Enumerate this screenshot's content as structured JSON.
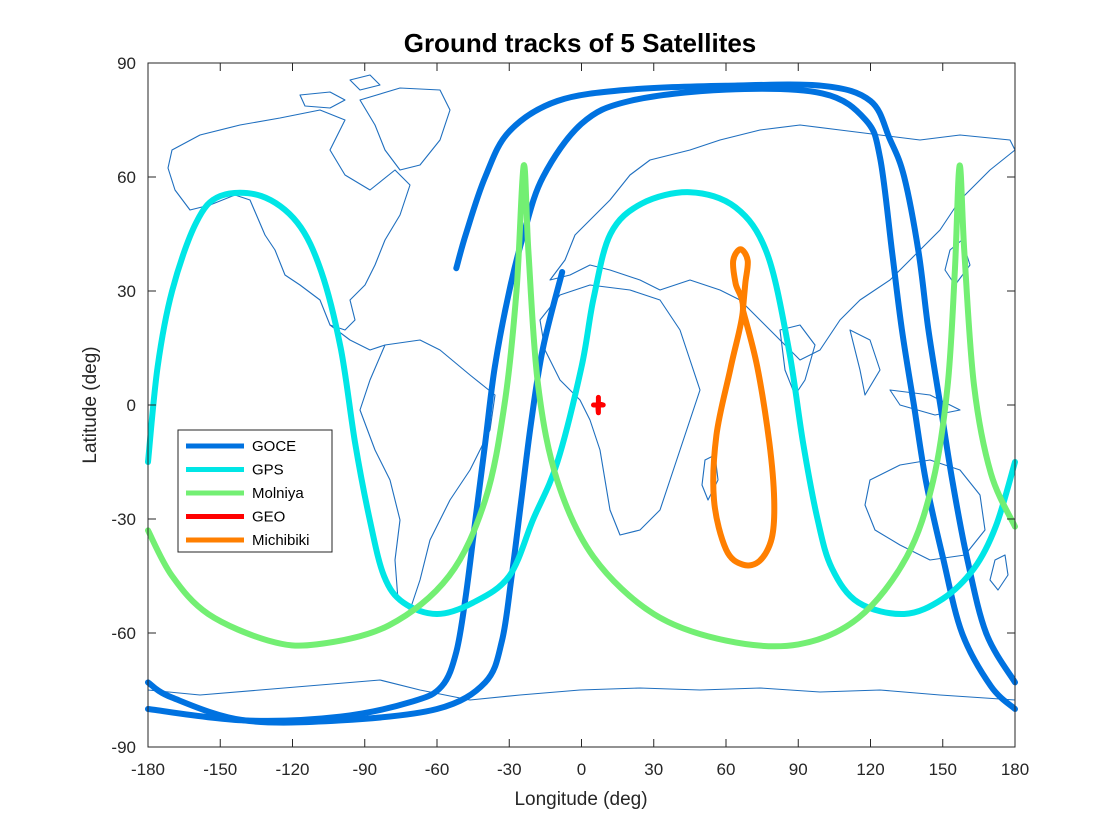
{
  "chart_data": {
    "type": "line",
    "title": "Ground tracks of 5 Satellites",
    "xlabel": "Longitude (deg)",
    "ylabel": "Latitude (deg)",
    "xlim": [
      -180,
      180
    ],
    "ylim": [
      -90,
      90
    ],
    "xticks": [
      -180,
      -150,
      -120,
      -90,
      -60,
      -30,
      0,
      30,
      60,
      90,
      120,
      150,
      180
    ],
    "yticks": [
      90,
      60,
      30,
      0,
      -30,
      -60,
      -90
    ],
    "grid": false,
    "legend_position": "left-center",
    "background": "world coastline map",
    "coastline_color": "#1f6fbf",
    "series": [
      {
        "name": "GOCE",
        "color": "#0072e0",
        "segments": [
          [
            [
              -52,
              36
            ],
            [
              -48,
              45
            ],
            [
              -40,
              60
            ],
            [
              -30,
              72
            ],
            [
              -10,
              80
            ],
            [
              20,
              83
            ],
            [
              60,
              84
            ],
            [
              100,
              84
            ],
            [
              120,
              80
            ],
            [
              128,
              70
            ],
            [
              134,
              60
            ],
            [
              140,
              40
            ],
            [
              144,
              20
            ],
            [
              149,
              0
            ],
            [
              154,
              -20
            ],
            [
              160,
              -40
            ],
            [
              168,
              -60
            ],
            [
              180,
              -73
            ]
          ],
          [
            [
              -180,
              -80
            ],
            [
              -140,
              -83
            ],
            [
              -100,
              -82
            ],
            [
              -70,
              -78
            ],
            [
              -58,
              -74
            ],
            [
              -52,
              -65
            ],
            [
              -48,
              -50
            ],
            [
              -44,
              -30
            ],
            [
              -40,
              -10
            ],
            [
              -36,
              10
            ],
            [
              -30,
              30
            ],
            [
              -24,
              45
            ],
            [
              -16,
              60
            ],
            [
              0,
              74
            ],
            [
              20,
              80
            ],
            [
              60,
              83
            ],
            [
              100,
              82
            ],
            [
              118,
              75
            ],
            [
              124,
              65
            ],
            [
              129,
              40
            ],
            [
              133,
              20
            ],
            [
              138,
              0
            ],
            [
              143,
              -20
            ],
            [
              150,
              -40
            ],
            [
              158,
              -60
            ],
            [
              170,
              -74
            ],
            [
              180,
              -80
            ]
          ],
          [
            [
              -180,
              -73
            ],
            [
              -170,
              -77
            ],
            [
              -140,
              -83
            ],
            [
              -100,
              -83
            ],
            [
              -60,
              -80
            ],
            [
              -40,
              -73
            ],
            [
              -33,
              -62
            ],
            [
              -29,
              -45
            ],
            [
              -25,
              -25
            ],
            [
              -21,
              -5
            ],
            [
              -16,
              15
            ],
            [
              -8,
              35
            ]
          ]
        ]
      },
      {
        "name": "GPS",
        "color": "#00e6e6",
        "segments": [
          [
            [
              -180,
              -15
            ],
            [
              -176,
              10
            ],
            [
              -170,
              30
            ],
            [
              -160,
              48
            ],
            [
              -150,
              55
            ],
            [
              -133,
              55
            ],
            [
              -118,
              48
            ],
            [
              -108,
              35
            ],
            [
              -100,
              15
            ],
            [
              -94,
              -10
            ],
            [
              -88,
              -30
            ],
            [
              -82,
              -45
            ],
            [
              -74,
              -52
            ],
            [
              -60,
              -55
            ],
            [
              -45,
              -52
            ],
            [
              -30,
              -45
            ],
            [
              -20,
              -30
            ],
            [
              -10,
              -15
            ],
            [
              0,
              10
            ],
            [
              5,
              28
            ],
            [
              12,
              45
            ],
            [
              25,
              53
            ],
            [
              45,
              56
            ],
            [
              64,
              52
            ],
            [
              77,
              40
            ],
            [
              86,
              15
            ],
            [
              92,
              -10
            ],
            [
              98,
              -30
            ],
            [
              104,
              -43
            ],
            [
              115,
              -52
            ],
            [
              134,
              -55
            ],
            [
              150,
              -51
            ],
            [
              163,
              -43
            ],
            [
              172,
              -32
            ],
            [
              180,
              -15
            ]
          ]
        ]
      },
      {
        "name": "Molniya",
        "color": "#73ef73",
        "segments": [
          [
            [
              -180,
              -33
            ],
            [
              -170,
              -45
            ],
            [
              -155,
              -55
            ],
            [
              -130,
              -62
            ],
            [
              -110,
              -63
            ],
            [
              -80,
              -58
            ],
            [
              -55,
              -45
            ],
            [
              -40,
              -25
            ],
            [
              -32,
              0
            ],
            [
              -27,
              30
            ],
            [
              -24,
              63
            ],
            [
              -22,
              40
            ],
            [
              -18,
              5
            ],
            [
              -10,
              -20
            ],
            [
              5,
              -40
            ],
            [
              30,
              -55
            ],
            [
              60,
              -62
            ],
            [
              90,
              -63
            ],
            [
              115,
              -56
            ],
            [
              135,
              -40
            ],
            [
              146,
              -20
            ],
            [
              152,
              5
            ],
            [
              155,
              35
            ],
            [
              157,
              63
            ],
            [
              159,
              40
            ],
            [
              163,
              5
            ],
            [
              170,
              -18
            ],
            [
              180,
              -32
            ]
          ]
        ]
      },
      {
        "name": "GEO",
        "color": "#ff0000",
        "segments": [
          [
            [
              5,
              0
            ],
            [
              7,
              0
            ],
            [
              9,
              0
            ],
            [
              7,
              0
            ],
            [
              7,
              -2
            ],
            [
              7,
              2
            ]
          ]
        ]
      },
      {
        "name": "Michibiki",
        "color": "#ff7f00",
        "segments": [
          [
            [
              67,
              25
            ],
            [
              73,
              10
            ],
            [
              78,
              -10
            ],
            [
              80,
              -25
            ],
            [
              79,
              -35
            ],
            [
              74,
              -41
            ],
            [
              67,
              -42
            ],
            [
              60,
              -38
            ],
            [
              55,
              -25
            ],
            [
              56,
              -8
            ],
            [
              62,
              10
            ],
            [
              67,
              25
            ],
            [
              64,
              32
            ],
            [
              63,
              38
            ],
            [
              66,
              41
            ],
            [
              69,
              38
            ],
            [
              68,
              32
            ],
            [
              67,
              25
            ]
          ]
        ]
      }
    ]
  }
}
